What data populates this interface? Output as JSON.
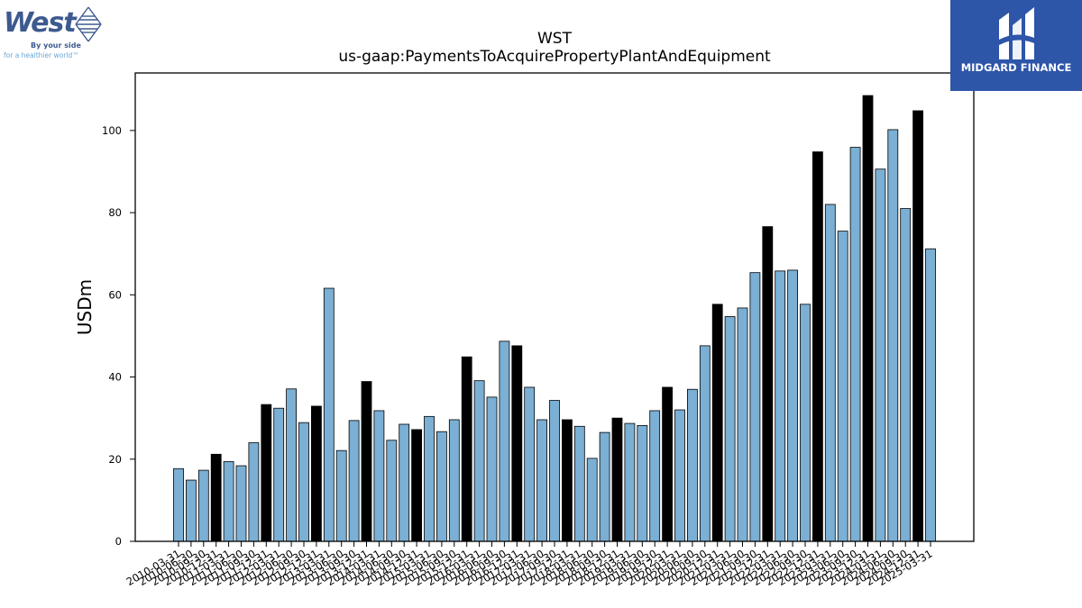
{
  "chart_data": {
    "type": "bar",
    "title": "WST",
    "subtitle": "us-gaap:PaymentsToAcquirePropertyPlantAndEquipment",
    "ylabel": "USDm",
    "xlabel": "",
    "ylim": [
      0,
      114
    ],
    "yticks": [
      0,
      20,
      40,
      60,
      80,
      100
    ],
    "categories": [
      "2010-03-31",
      "2010-06-30",
      "2010-09-30",
      "2010-12-31",
      "2011-03-31",
      "2011-06-30",
      "2011-09-30",
      "2011-12-31",
      "2012-03-31",
      "2012-06-30",
      "2012-09-30",
      "2012-12-31",
      "2013-03-31",
      "2013-06-30",
      "2013-09-30",
      "2013-12-31",
      "2014-03-31",
      "2014-06-30",
      "2014-09-30",
      "2014-12-31",
      "2015-03-31",
      "2015-06-30",
      "2015-09-30",
      "2015-12-31",
      "2016-03-31",
      "2016-06-30",
      "2016-09-30",
      "2016-12-31",
      "2017-03-31",
      "2017-06-30",
      "2017-09-30",
      "2017-12-31",
      "2018-03-31",
      "2018-06-30",
      "2018-09-30",
      "2018-12-31",
      "2019-03-31",
      "2019-06-30",
      "2019-09-30",
      "2019-12-31",
      "2020-03-31",
      "2020-06-30",
      "2020-09-30",
      "2020-12-31",
      "2021-03-31",
      "2021-06-30",
      "2021-09-30",
      "2021-12-31",
      "2022-03-31",
      "2022-06-30",
      "2022-09-30",
      "2022-12-31",
      "2023-03-31",
      "2023-06-30",
      "2023-09-30",
      "2023-12-31",
      "2024-03-31",
      "2024-06-30",
      "2024-09-30",
      "2024-12-31",
      "2025-03-31"
    ],
    "values": [
      17.7,
      14.9,
      17.3,
      21.2,
      19.4,
      18.4,
      24.0,
      33.3,
      32.4,
      37.1,
      28.9,
      32.9,
      61.6,
      22.1,
      29.4,
      38.9,
      31.8,
      24.6,
      28.5,
      27.2,
      30.4,
      26.7,
      29.6,
      44.9,
      39.1,
      35.1,
      48.7,
      47.6,
      37.5,
      29.6,
      34.3,
      29.6,
      28.0,
      20.2,
      26.5,
      30.0,
      28.7,
      28.2,
      31.8,
      37.5,
      32.0,
      37.0,
      47.6,
      57.7,
      54.7,
      56.8,
      65.4,
      76.6,
      65.8,
      66.0,
      57.7,
      94.8,
      82.0,
      75.5,
      95.9,
      108.5,
      90.6,
      100.2,
      81.0,
      104.8,
      71.2
    ],
    "highlight": [
      false,
      false,
      false,
      true,
      false,
      false,
      false,
      true,
      false,
      false,
      false,
      true,
      false,
      false,
      false,
      true,
      false,
      false,
      false,
      true,
      false,
      false,
      false,
      true,
      false,
      false,
      false,
      true,
      false,
      false,
      false,
      true,
      false,
      false,
      false,
      true,
      false,
      false,
      false,
      true,
      false,
      false,
      false,
      true,
      false,
      false,
      false,
      true,
      false,
      false,
      false,
      true,
      false,
      false,
      false,
      true,
      false,
      false,
      false,
      true,
      false
    ],
    "colors": {
      "bar": "#7bafd4",
      "highlight": "#000000",
      "edge": "#000000"
    },
    "grid": false,
    "legend": "none"
  },
  "logos": {
    "company": {
      "name": "West",
      "tagline_1": "By your side",
      "tagline_2": "for a healthier world™",
      "color": "#3d5a8f",
      "accent": "#6aa6d4"
    },
    "brand": {
      "name": "MIDGARD FINANCE",
      "background": "#2d55a8"
    }
  }
}
